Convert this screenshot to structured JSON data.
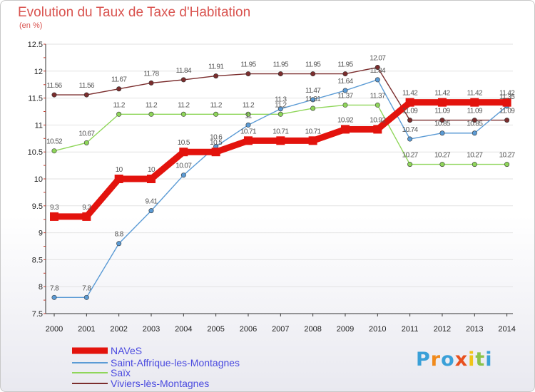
{
  "chart_data": {
    "type": "line",
    "title": "Evolution du Taux de Taxe d'Habitation",
    "subtitle": "(en %)",
    "xlabel": "",
    "ylabel": "",
    "ylim": [
      7.5,
      12.5
    ],
    "yticks": [
      "7.5",
      "8",
      "8.5",
      "9",
      "9.5",
      "10",
      "10.5",
      "11",
      "11.5",
      "12",
      "12.5"
    ],
    "categories": [
      "2000",
      "2001",
      "2002",
      "2003",
      "2004",
      "2005",
      "2006",
      "2007",
      "2008",
      "2009",
      "2010",
      "2011",
      "2012",
      "2013",
      "2014"
    ],
    "series": [
      {
        "name": "NAVeS",
        "color": "#e3130d",
        "values": [
          9.3,
          9.3,
          10,
          10,
          10.5,
          10.5,
          10.71,
          10.71,
          10.71,
          10.92,
          10.92,
          11.42,
          11.42,
          11.42,
          11.42
        ],
        "labels": [
          "9.3",
          "9.3",
          "10",
          "10",
          "10.5",
          "10.5",
          "10.71",
          "10.71",
          "10.71",
          "10.92",
          "10.92",
          "11.42",
          "11.42",
          "11.42",
          "11.42"
        ]
      },
      {
        "name": "Saint-Affrique-les-Montagnes",
        "color": "#5b9bd5",
        "values": [
          7.8,
          7.8,
          8.8,
          9.41,
          10.07,
          10.6,
          11,
          11.3,
          11.47,
          11.64,
          11.84,
          10.74,
          10.85,
          10.85,
          11.35
        ],
        "labels": [
          "7.8",
          "7.8",
          "8.8",
          "9.41",
          "10.07",
          "10.6",
          "11",
          "11.3",
          "11.47",
          "11.64",
          "11.84",
          "10.74",
          "10.85",
          "10.85",
          "11.35"
        ]
      },
      {
        "name": "Saïx",
        "color": "#8fd65a",
        "values": [
          10.52,
          10.67,
          11.2,
          11.2,
          11.2,
          11.2,
          11.2,
          11.2,
          11.31,
          11.37,
          11.37,
          10.27,
          10.27,
          10.27,
          10.27
        ],
        "labels": [
          "10.52",
          "10.67",
          "11.2",
          "11.2",
          "11.2",
          "11.2",
          "11.2",
          "11.2",
          "11.31",
          "11.37",
          "11.37",
          "10.27",
          "10.27",
          "10.27",
          "10.27"
        ]
      },
      {
        "name": "Viviers-lès-Montagnes",
        "color": "#7b2d2d",
        "values": [
          11.56,
          11.56,
          11.67,
          11.78,
          11.84,
          11.91,
          11.95,
          11.95,
          11.95,
          11.95,
          12.07,
          11.09,
          11.09,
          11.09,
          11.09
        ],
        "labels": [
          "11.56",
          "11.56",
          "11.67",
          "11.78",
          "11.84",
          "11.91",
          "11.95",
          "11.95",
          "11.95",
          "11.95",
          "12.07",
          "11.09",
          "11.09",
          "11.09",
          "11.09"
        ]
      }
    ]
  },
  "logo": {
    "letters": [
      "P",
      "r",
      "o",
      "x",
      "i",
      "t",
      "i"
    ],
    "colors": [
      "#3aa0d8",
      "#f08a1c",
      "#3aa0d8",
      "#e8501e",
      "#f0c419",
      "#8bc34a",
      "#3aa0d8"
    ]
  }
}
